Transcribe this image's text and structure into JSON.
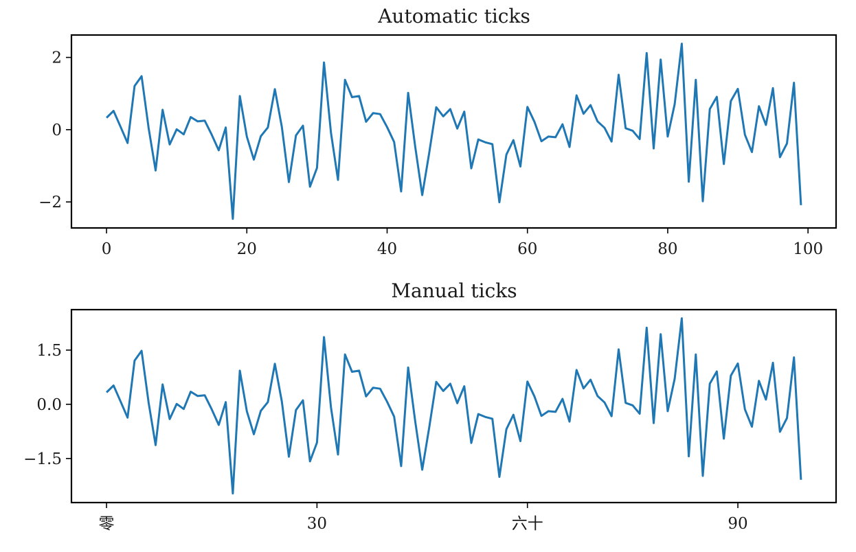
{
  "chart_data": [
    {
      "type": "line",
      "title": "Automatic ticks",
      "xlabel": "",
      "ylabel": "",
      "xlim": [
        -5,
        104
      ],
      "ylim": [
        -2.72,
        2.62
      ],
      "grid": false,
      "line_color": "#1f77b4",
      "xticks": [
        {
          "value": 0,
          "label": "0"
        },
        {
          "value": 20,
          "label": "20"
        },
        {
          "value": 40,
          "label": "40"
        },
        {
          "value": 60,
          "label": "60"
        },
        {
          "value": 80,
          "label": "80"
        },
        {
          "value": 100,
          "label": "100"
        }
      ],
      "yticks": [
        {
          "value": -2,
          "label": "−2"
        },
        {
          "value": 0,
          "label": "0"
        },
        {
          "value": 2,
          "label": "2"
        }
      ],
      "series": [
        {
          "x": [
            0,
            1,
            2,
            3,
            4,
            5,
            6,
            7,
            8,
            9,
            10,
            11,
            12,
            13,
            14,
            15,
            16,
            17,
            18,
            19,
            20,
            21,
            22,
            23,
            24,
            25,
            26,
            27,
            28,
            29,
            30,
            31,
            32,
            33,
            34,
            35,
            36,
            37,
            38,
            39,
            40,
            41,
            42,
            43,
            44,
            45,
            46,
            47,
            48,
            49,
            50,
            51,
            52,
            53,
            54,
            55,
            56,
            57,
            58,
            59,
            60,
            61,
            62,
            63,
            64,
            65,
            66,
            67,
            68,
            69,
            70,
            71,
            72,
            73,
            74,
            75,
            76,
            77,
            78,
            79,
            80,
            81,
            82,
            83,
            84,
            85,
            86,
            87,
            88,
            89,
            90,
            91,
            92,
            93,
            94,
            95,
            96,
            97,
            98,
            99
          ],
          "y": [
            0.33,
            0.52,
            0.08,
            -0.37,
            1.21,
            1.48,
            0.05,
            -1.13,
            0.55,
            -0.41,
            0.01,
            -0.13,
            0.35,
            0.23,
            0.25,
            -0.14,
            -0.57,
            0.06,
            -2.47,
            0.93,
            -0.19,
            -0.83,
            -0.18,
            0.06,
            1.12,
            0.07,
            -1.45,
            -0.16,
            0.11,
            -1.58,
            -1.06,
            1.86,
            -0.09,
            -1.39,
            1.38,
            0.9,
            0.93,
            0.22,
            0.46,
            0.43,
            0.07,
            -0.34,
            -1.71,
            1.02,
            -0.46,
            -1.81,
            -0.64,
            0.62,
            0.37,
            0.57,
            0.03,
            0.5,
            -1.07,
            -0.27,
            -0.35,
            -0.4,
            -2.01,
            -0.69,
            -0.29,
            -1.02,
            0.63,
            0.22,
            -0.32,
            -0.19,
            -0.21,
            0.15,
            -0.48,
            0.95,
            0.44,
            0.68,
            0.23,
            0.05,
            -0.33,
            1.52,
            0.04,
            -0.03,
            -0.26,
            2.12,
            -0.52,
            1.94,
            -0.19,
            0.71,
            2.38,
            -1.44,
            1.38,
            -1.98,
            0.57,
            0.91,
            -0.95,
            0.79,
            1.13,
            -0.14,
            -0.62,
            0.65,
            0.13,
            1.15,
            -0.76,
            -0.38,
            1.3,
            -2.09
          ]
        }
      ]
    },
    {
      "type": "line",
      "title": "Manual ticks",
      "xlabel": "",
      "ylabel": "",
      "xlim": [
        -5,
        104
      ],
      "ylim": [
        -2.72,
        2.62
      ],
      "grid": false,
      "line_color": "#1f77b4",
      "xticks": [
        {
          "value": 0,
          "label": "零"
        },
        {
          "value": 30,
          "label": "30"
        },
        {
          "value": 60,
          "label": "六十"
        },
        {
          "value": 90,
          "label": "90"
        }
      ],
      "yticks": [
        {
          "value": -1.5,
          "label": "−1.5"
        },
        {
          "value": 0,
          "label": "0.0"
        },
        {
          "value": 1.5,
          "label": "1.5"
        }
      ],
      "series": [
        {
          "x": [
            0,
            1,
            2,
            3,
            4,
            5,
            6,
            7,
            8,
            9,
            10,
            11,
            12,
            13,
            14,
            15,
            16,
            17,
            18,
            19,
            20,
            21,
            22,
            23,
            24,
            25,
            26,
            27,
            28,
            29,
            30,
            31,
            32,
            33,
            34,
            35,
            36,
            37,
            38,
            39,
            40,
            41,
            42,
            43,
            44,
            45,
            46,
            47,
            48,
            49,
            50,
            51,
            52,
            53,
            54,
            55,
            56,
            57,
            58,
            59,
            60,
            61,
            62,
            63,
            64,
            65,
            66,
            67,
            68,
            69,
            70,
            71,
            72,
            73,
            74,
            75,
            76,
            77,
            78,
            79,
            80,
            81,
            82,
            83,
            84,
            85,
            86,
            87,
            88,
            89,
            90,
            91,
            92,
            93,
            94,
            95,
            96,
            97,
            98,
            99
          ],
          "y": [
            0.33,
            0.52,
            0.08,
            -0.37,
            1.21,
            1.48,
            0.05,
            -1.13,
            0.55,
            -0.41,
            0.01,
            -0.13,
            0.35,
            0.23,
            0.25,
            -0.14,
            -0.57,
            0.06,
            -2.47,
            0.93,
            -0.19,
            -0.83,
            -0.18,
            0.06,
            1.12,
            0.07,
            -1.45,
            -0.16,
            0.11,
            -1.58,
            -1.06,
            1.86,
            -0.09,
            -1.39,
            1.38,
            0.9,
            0.93,
            0.22,
            0.46,
            0.43,
            0.07,
            -0.34,
            -1.71,
            1.02,
            -0.46,
            -1.81,
            -0.64,
            0.62,
            0.37,
            0.57,
            0.03,
            0.5,
            -1.07,
            -0.27,
            -0.35,
            -0.4,
            -2.01,
            -0.69,
            -0.29,
            -1.02,
            0.63,
            0.22,
            -0.32,
            -0.19,
            -0.21,
            0.15,
            -0.48,
            0.95,
            0.44,
            0.68,
            0.23,
            0.05,
            -0.33,
            1.52,
            0.04,
            -0.03,
            -0.26,
            2.12,
            -0.52,
            1.94,
            -0.19,
            0.71,
            2.38,
            -1.44,
            1.38,
            -1.98,
            0.57,
            0.91,
            -0.95,
            0.79,
            1.13,
            -0.14,
            -0.62,
            0.65,
            0.13,
            1.15,
            -0.76,
            -0.38,
            1.3,
            -2.09
          ]
        }
      ]
    }
  ]
}
